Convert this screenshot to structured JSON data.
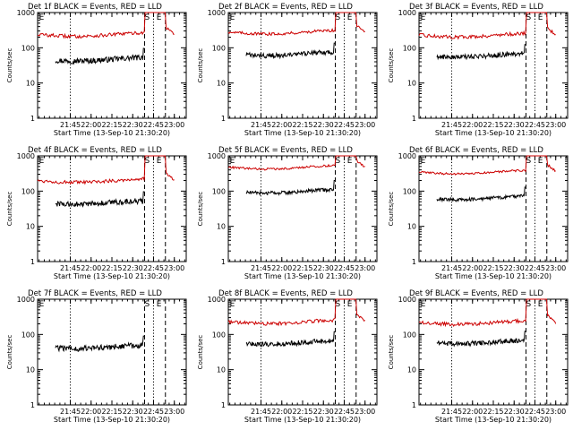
{
  "chart_data": [
    {
      "type": "line",
      "title": "Det 1f BLACK = Events, RED = LLD",
      "xlabel": "Start Time (13-Sep-10 21:30:20)",
      "ylabel": "Counts/sec",
      "x_ticks": [
        "21:45",
        "22:00",
        "22:15",
        "22:30",
        "22:45",
        "23:00"
      ],
      "y_ticks": [
        "1",
        "10",
        "100",
        "1000"
      ],
      "ylim": [
        1,
        1000
      ],
      "yscale": "log",
      "markers": [
        "E",
        "S",
        "E"
      ],
      "series": [
        {
          "color": "#000000",
          "level": 48,
          "range": [
            0.12,
            0.72
          ],
          "noise": 0.08
        },
        {
          "color": "#cc0000",
          "level": 240,
          "range": [
            0.0,
            0.92
          ],
          "noise": 0.05
        }
      ]
    },
    {
      "type": "line",
      "title": "Det 2f BLACK = Events, RED = LLD",
      "xlabel": "Start Time (13-Sep-10 21:30:20)",
      "ylabel": "Counts/sec",
      "x_ticks": [
        "21:45",
        "22:00",
        "22:15",
        "22:30",
        "22:45",
        "23:00"
      ],
      "y_ticks": [
        "1",
        "10",
        "100",
        "1000"
      ],
      "ylim": [
        1,
        1000
      ],
      "yscale": "log",
      "markers": [
        "E",
        "S",
        "E"
      ],
      "series": [
        {
          "color": "#000000",
          "level": 68,
          "range": [
            0.12,
            0.72
          ],
          "noise": 0.07
        },
        {
          "color": "#cc0000",
          "level": 280,
          "range": [
            0.0,
            0.92
          ],
          "noise": 0.04
        }
      ]
    },
    {
      "type": "line",
      "title": "Det 3f BLACK = Events, RED = LLD",
      "xlabel": "Start Time (13-Sep-10 21:30:20)",
      "ylabel": "Counts/sec",
      "x_ticks": [
        "21:45",
        "22:00",
        "22:15",
        "22:30",
        "22:45",
        "23:00"
      ],
      "y_ticks": [
        "1",
        "10",
        "100",
        "1000"
      ],
      "ylim": [
        1,
        1000
      ],
      "yscale": "log",
      "markers": [
        "E",
        "S",
        "E"
      ],
      "series": [
        {
          "color": "#000000",
          "level": 62,
          "range": [
            0.12,
            0.72
          ],
          "noise": 0.07
        },
        {
          "color": "#cc0000",
          "level": 230,
          "range": [
            0.0,
            0.92
          ],
          "noise": 0.05
        }
      ]
    },
    {
      "type": "line",
      "title": "Det 4f BLACK = Events, RED = LLD",
      "xlabel": "Start Time (13-Sep-10 21:30:20)",
      "ylabel": "Counts/sec",
      "x_ticks": [
        "21:45",
        "22:00",
        "22:15",
        "22:30",
        "22:45",
        "23:00"
      ],
      "y_ticks": [
        "1",
        "10",
        "100",
        "1000"
      ],
      "ylim": [
        1,
        1000
      ],
      "yscale": "log",
      "markers": [
        "E",
        "S",
        "E"
      ],
      "series": [
        {
          "color": "#000000",
          "level": 48,
          "range": [
            0.12,
            0.72
          ],
          "noise": 0.08
        },
        {
          "color": "#cc0000",
          "level": 200,
          "range": [
            0.0,
            0.92
          ],
          "noise": 0.05
        }
      ]
    },
    {
      "type": "line",
      "title": "Det 5f BLACK = Events, RED = LLD",
      "xlabel": "Start Time (13-Sep-10 21:30:20)",
      "ylabel": "Counts/sec",
      "x_ticks": [
        "21:45",
        "22:00",
        "22:15",
        "22:30",
        "22:45",
        "23:00"
      ],
      "y_ticks": [
        "1",
        "10",
        "100",
        "1000"
      ],
      "ylim": [
        1,
        1000
      ],
      "yscale": "log",
      "markers": [
        "E",
        "S",
        "E"
      ],
      "series": [
        {
          "color": "#000000",
          "level": 100,
          "range": [
            0.12,
            0.72
          ],
          "noise": 0.05
        },
        {
          "color": "#cc0000",
          "level": 480,
          "range": [
            0.0,
            0.92
          ],
          "noise": 0.03
        }
      ]
    },
    {
      "type": "line",
      "title": "Det 6f BLACK = Events, RED = LLD",
      "xlabel": "Start Time (13-Sep-10 21:30:20)",
      "ylabel": "Counts/sec",
      "x_ticks": [
        "21:45",
        "22:00",
        "22:15",
        "22:30",
        "22:45",
        "23:00"
      ],
      "y_ticks": [
        "1",
        "10",
        "100",
        "1000"
      ],
      "ylim": [
        1,
        1000
      ],
      "yscale": "log",
      "markers": [
        "E",
        "S",
        "E"
      ],
      "series": [
        {
          "color": "#000000",
          "level": 65,
          "range": [
            0.12,
            0.72
          ],
          "noise": 0.05
        },
        {
          "color": "#cc0000",
          "level": 350,
          "range": [
            0.0,
            0.92
          ],
          "noise": 0.03
        }
      ]
    },
    {
      "type": "line",
      "title": "Det 7f BLACK = Events, RED = LLD",
      "xlabel": "Start Time (13-Sep-10 21:30:20)",
      "ylabel": "Counts/sec",
      "x_ticks": [
        "21:45",
        "22:00",
        "22:15",
        "22:30",
        "22:45",
        "23:00"
      ],
      "y_ticks": [
        "1",
        "10",
        "100",
        "1000"
      ],
      "ylim": [
        1,
        1000
      ],
      "yscale": "log",
      "markers": [
        "E",
        "S",
        "E"
      ],
      "series": [
        {
          "color": "#000000",
          "level": 45,
          "range": [
            0.12,
            0.72
          ],
          "noise": 0.08
        }
      ]
    },
    {
      "type": "line",
      "title": "Det 8f BLACK = Events, RED = LLD",
      "xlabel": "Start Time (13-Sep-10 21:30:20)",
      "ylabel": "Counts/sec",
      "x_ticks": [
        "21:45",
        "22:00",
        "22:15",
        "22:30",
        "22:45",
        "23:00"
      ],
      "y_ticks": [
        "1",
        "10",
        "100",
        "1000"
      ],
      "ylim": [
        1,
        1000
      ],
      "yscale": "log",
      "markers": [
        "E",
        "S",
        "E"
      ],
      "series": [
        {
          "color": "#000000",
          "level": 60,
          "range": [
            0.12,
            0.72
          ],
          "noise": 0.07
        },
        {
          "color": "#cc0000",
          "level": 230,
          "range": [
            0.0,
            0.92
          ],
          "noise": 0.05
        }
      ]
    },
    {
      "type": "line",
      "title": "Det 9f BLACK = Events, RED = LLD",
      "xlabel": "Start Time (13-Sep-10 21:30:20)",
      "ylabel": "Counts/sec",
      "x_ticks": [
        "21:45",
        "22:00",
        "22:15",
        "22:30",
        "22:45",
        "23:00"
      ],
      "y_ticks": [
        "1",
        "10",
        "100",
        "1000"
      ],
      "ylim": [
        1,
        1000
      ],
      "yscale": "log",
      "markers": [
        "E",
        "S",
        "E"
      ],
      "series": [
        {
          "color": "#000000",
          "level": 62,
          "range": [
            0.12,
            0.72
          ],
          "noise": 0.07
        },
        {
          "color": "#cc0000",
          "level": 220,
          "range": [
            0.0,
            0.92
          ],
          "noise": 0.05
        }
      ]
    }
  ]
}
